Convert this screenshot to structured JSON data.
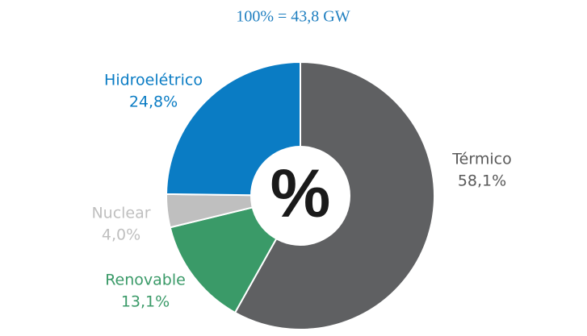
{
  "chart_data": {
    "type": "donut",
    "title": "100% = 43,8 GW",
    "center_label": "%",
    "categories": [
      "Térmico",
      "Renovable",
      "Nuclear",
      "Hidroelétrico"
    ],
    "values": [
      58.1,
      13.1,
      4.0,
      24.8
    ],
    "value_labels": [
      "58,1%",
      "13,1%",
      "4,0%",
      "24,8%"
    ],
    "colors": [
      "#5f6062",
      "#3a9a68",
      "#bfbfbf",
      "#0a7cc4"
    ],
    "label_colors": [
      "#595959",
      "#3a9a68",
      "#bfbfbf",
      "#0a7cc4"
    ]
  }
}
